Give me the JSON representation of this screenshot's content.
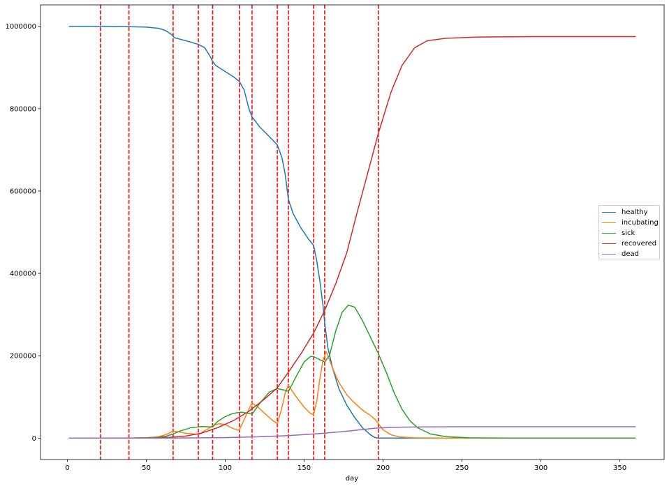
{
  "chart_data": {
    "type": "line",
    "xlabel": "day",
    "ylabel": "",
    "xlim": [
      -17,
      378
    ],
    "ylim": [
      -52000,
      1052000
    ],
    "x_ticks": [
      0,
      50,
      100,
      150,
      200,
      250,
      300,
      350
    ],
    "y_ticks": [
      0,
      200000,
      400000,
      600000,
      800000,
      1000000
    ],
    "grid": false,
    "legend_position": "center-right",
    "vlines": {
      "color": "#ff0000",
      "style": "dashed",
      "x": [
        21,
        39,
        67,
        83,
        92,
        109,
        117,
        133,
        140,
        156,
        163,
        197
      ]
    },
    "series": [
      {
        "name": "healthy",
        "color": "#1f77b4",
        "points": [
          [
            1,
            1000000
          ],
          [
            21,
            999900
          ],
          [
            39,
            999000
          ],
          [
            50,
            998000
          ],
          [
            58,
            995000
          ],
          [
            62,
            990000
          ],
          [
            66,
            980000
          ],
          [
            68,
            972000
          ],
          [
            75,
            965000
          ],
          [
            83,
            956000
          ],
          [
            87,
            948000
          ],
          [
            90,
            930000
          ],
          [
            92,
            915000
          ],
          [
            94,
            905000
          ],
          [
            100,
            890000
          ],
          [
            105,
            878000
          ],
          [
            109,
            866000
          ],
          [
            112,
            845000
          ],
          [
            115,
            800000
          ],
          [
            117,
            780000
          ],
          [
            122,
            755000
          ],
          [
            128,
            732000
          ],
          [
            133,
            712000
          ],
          [
            136,
            680000
          ],
          [
            138,
            640000
          ],
          [
            140,
            580000
          ],
          [
            143,
            545000
          ],
          [
            148,
            510000
          ],
          [
            153,
            482000
          ],
          [
            156,
            468000
          ],
          [
            158,
            430000
          ],
          [
            160,
            380000
          ],
          [
            162,
            320000
          ],
          [
            163,
            280000
          ],
          [
            165,
            220000
          ],
          [
            168,
            170000
          ],
          [
            172,
            120000
          ],
          [
            177,
            80000
          ],
          [
            182,
            50000
          ],
          [
            187,
            25000
          ],
          [
            192,
            8000
          ],
          [
            195,
            1000
          ],
          [
            197,
            0
          ],
          [
            360,
            0
          ]
        ]
      },
      {
        "name": "incubating",
        "color": "#ff7f0e",
        "points": [
          [
            1,
            0
          ],
          [
            40,
            200
          ],
          [
            50,
            1000
          ],
          [
            58,
            3500
          ],
          [
            63,
            9000
          ],
          [
            67,
            17000
          ],
          [
            71,
            15000
          ],
          [
            75,
            12000
          ],
          [
            80,
            10000
          ],
          [
            83,
            9000
          ],
          [
            88,
            20000
          ],
          [
            92,
            30000
          ],
          [
            96,
            35000
          ],
          [
            100,
            33000
          ],
          [
            104,
            25000
          ],
          [
            108,
            19000
          ],
          [
            109,
            20000
          ],
          [
            112,
            45000
          ],
          [
            115,
            70000
          ],
          [
            117,
            85000
          ],
          [
            120,
            78000
          ],
          [
            125,
            60000
          ],
          [
            130,
            43000
          ],
          [
            133,
            35000
          ],
          [
            136,
            75000
          ],
          [
            138,
            110000
          ],
          [
            140,
            128000
          ],
          [
            145,
            100000
          ],
          [
            150,
            75000
          ],
          [
            154,
            60000
          ],
          [
            156,
            57000
          ],
          [
            158,
            90000
          ],
          [
            160,
            145000
          ],
          [
            162,
            190000
          ],
          [
            164,
            210000
          ],
          [
            168,
            170000
          ],
          [
            172,
            135000
          ],
          [
            177,
            105000
          ],
          [
            182,
            85000
          ],
          [
            187,
            68000
          ],
          [
            192,
            55000
          ],
          [
            195,
            45000
          ],
          [
            197,
            35000
          ],
          [
            200,
            20000
          ],
          [
            205,
            8000
          ],
          [
            210,
            3000
          ],
          [
            220,
            800
          ],
          [
            240,
            100
          ],
          [
            360,
            0
          ]
        ]
      },
      {
        "name": "sick",
        "color": "#2ca02c",
        "points": [
          [
            1,
            0
          ],
          [
            40,
            100
          ],
          [
            55,
            1000
          ],
          [
            62,
            4000
          ],
          [
            67,
            10000
          ],
          [
            72,
            18000
          ],
          [
            78,
            25000
          ],
          [
            85,
            28000
          ],
          [
            92,
            27000
          ],
          [
            95,
            40000
          ],
          [
            100,
            52000
          ],
          [
            105,
            60000
          ],
          [
            110,
            63000
          ],
          [
            115,
            60000
          ],
          [
            117,
            58000
          ],
          [
            122,
            85000
          ],
          [
            128,
            112000
          ],
          [
            133,
            120000
          ],
          [
            138,
            116000
          ],
          [
            140,
            113000
          ],
          [
            145,
            150000
          ],
          [
            150,
            185000
          ],
          [
            154,
            198000
          ],
          [
            156,
            198000
          ],
          [
            160,
            190000
          ],
          [
            163,
            185000
          ],
          [
            166,
            200000
          ],
          [
            170,
            260000
          ],
          [
            174,
            305000
          ],
          [
            178,
            323000
          ],
          [
            182,
            318000
          ],
          [
            187,
            285000
          ],
          [
            192,
            245000
          ],
          [
            197,
            205000
          ],
          [
            202,
            160000
          ],
          [
            207,
            110000
          ],
          [
            212,
            70000
          ],
          [
            217,
            42000
          ],
          [
            222,
            25000
          ],
          [
            230,
            10000
          ],
          [
            240,
            3500
          ],
          [
            255,
            700
          ],
          [
            280,
            50
          ],
          [
            360,
            0
          ]
        ]
      },
      {
        "name": "recovered",
        "color": "#d62728",
        "points": [
          [
            1,
            0
          ],
          [
            40,
            100
          ],
          [
            55,
            500
          ],
          [
            65,
            2000
          ],
          [
            75,
            5000
          ],
          [
            85,
            12000
          ],
          [
            95,
            25000
          ],
          [
            105,
            42000
          ],
          [
            115,
            65000
          ],
          [
            125,
            95000
          ],
          [
            133,
            122000
          ],
          [
            140,
            160000
          ],
          [
            148,
            205000
          ],
          [
            156,
            255000
          ],
          [
            163,
            310000
          ],
          [
            170,
            375000
          ],
          [
            177,
            450000
          ],
          [
            183,
            540000
          ],
          [
            190,
            640000
          ],
          [
            197,
            740000
          ],
          [
            205,
            840000
          ],
          [
            212,
            905000
          ],
          [
            220,
            948000
          ],
          [
            228,
            965000
          ],
          [
            240,
            971000
          ],
          [
            260,
            974000
          ],
          [
            300,
            975000
          ],
          [
            360,
            975000
          ]
        ]
      },
      {
        "name": "dead",
        "color": "#9467bd",
        "points": [
          [
            1,
            0
          ],
          [
            60,
            100
          ],
          [
            80,
            400
          ],
          [
            100,
            1200
          ],
          [
            120,
            3000
          ],
          [
            140,
            6000
          ],
          [
            160,
            11000
          ],
          [
            175,
            16000
          ],
          [
            185,
            20000
          ],
          [
            195,
            24000
          ],
          [
            205,
            26000
          ],
          [
            220,
            27000
          ],
          [
            250,
            27500
          ],
          [
            360,
            27500
          ]
        ]
      }
    ]
  }
}
